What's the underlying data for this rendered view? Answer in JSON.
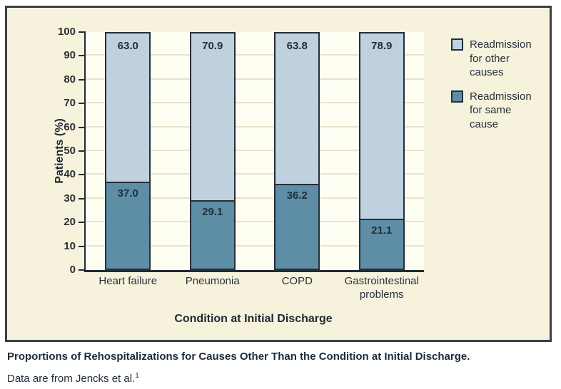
{
  "figure": {
    "caption_title": "Proportions of Rehospitalizations for Causes Other Than the Condition at Initial Discharge.",
    "caption_source": "Data are from Jencks et al.",
    "caption_source_sup": "1"
  },
  "chart_data": {
    "type": "bar",
    "stacked": true,
    "title": "",
    "xlabel": "Condition at Initial Discharge",
    "ylabel": "Patients (%)",
    "ylim": [
      0,
      100
    ],
    "ytick_step": 10,
    "grid": true,
    "legend_position": "right",
    "categories": [
      "Heart failure",
      "Pneumonia",
      "COPD",
      "Gastrointestinal problems"
    ],
    "series": [
      {
        "name": "Readmission for other causes",
        "values": [
          63.0,
          70.9,
          63.8,
          78.9
        ],
        "color": "#bfd1df",
        "position": "top"
      },
      {
        "name": "Readmission for same cause",
        "values": [
          37.0,
          29.1,
          36.2,
          21.1
        ],
        "color": "#5d8ea6",
        "position": "bottom"
      }
    ],
    "colors": {
      "figure_background": "#f6f2dc",
      "plot_background": "#fffef2",
      "gridline": "#e8e4cb",
      "axis": "#232b33",
      "bar_border": "#252e38",
      "text": "#27313c"
    }
  }
}
